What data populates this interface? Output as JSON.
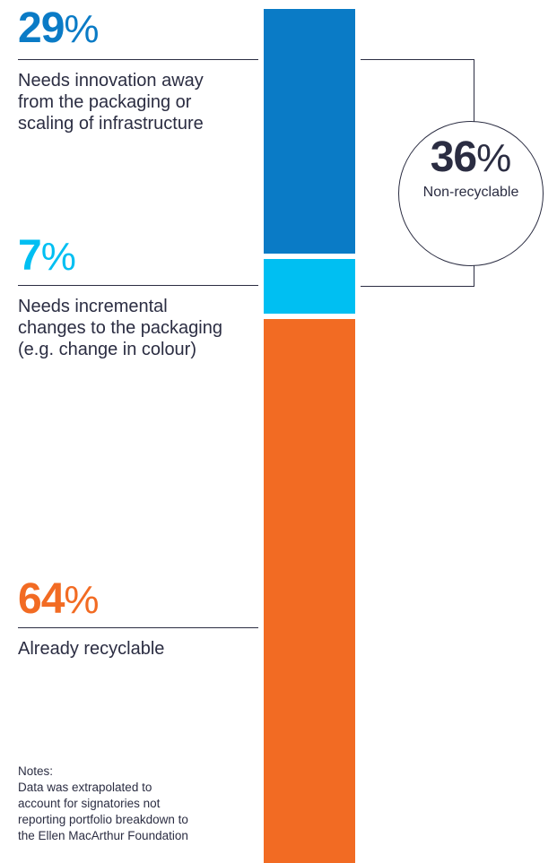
{
  "chart_data": {
    "type": "bar",
    "stacked": true,
    "orientation": "vertical",
    "unit": "%",
    "segments": [
      {
        "value": 29,
        "label": "Needs innovation away from the packaging or scaling of infrastructure",
        "color": "#0a7bc6"
      },
      {
        "value": 7,
        "label": "Needs incremental changes to the packaging (e.g. change in colour)",
        "color": "#00bff2"
      },
      {
        "value": 64,
        "label": "Already recyclable",
        "color": "#f26b23"
      }
    ],
    "group": {
      "value": 36,
      "label": "Non-recyclable",
      "covers": [
        0,
        1
      ]
    }
  },
  "text": {
    "pct_sign": "%",
    "notes_title": "Notes:",
    "notes_body": "Data was extrapolated to account for signatories not reporting portfolio breakdown to the Ellen MacArthur Foundation"
  }
}
